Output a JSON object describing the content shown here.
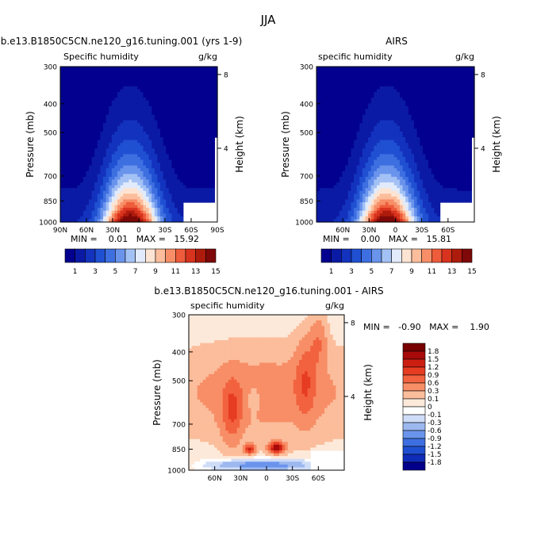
{
  "figure": {
    "title": "JJA"
  },
  "chart_data": [
    {
      "type": "heatmap",
      "panel": "model",
      "title": "b.e13.B1850C5CN.ne120_g16.tuning.001 (yrs 1-9)",
      "left_label": "Specific humidity",
      "units": "g/kg",
      "ylabel": "Pressure (mb)",
      "ylabel_right": "Height (km)",
      "x_ticks": [
        "90N",
        "60N",
        "30N",
        "0",
        "30S",
        "60S",
        "90S"
      ],
      "y_ticks": [
        "300",
        "400",
        "500",
        "700",
        "850",
        "1000"
      ],
      "height_ticks": [
        "8",
        "4"
      ],
      "ylim": [
        1000,
        300
      ],
      "stats_text": "MIN =    0.01   MAX =   15.92",
      "min": 0.01,
      "max": 15.92,
      "peak_lat": 10,
      "colorbar_labels": [
        "1",
        "3",
        "5",
        "7",
        "9",
        "11",
        "13",
        "15"
      ]
    },
    {
      "type": "heatmap",
      "panel": "obs",
      "title": "AIRS",
      "left_label": "specific humidity",
      "units": "g/kg",
      "ylabel": "Pressure (mb)",
      "ylabel_right": "Height (km)",
      "x_ticks": [
        "60N",
        "30N",
        "0",
        "30S",
        "60S"
      ],
      "y_ticks": [
        "300",
        "400",
        "500",
        "700",
        "850",
        "1000"
      ],
      "height_ticks": [
        "8",
        "4"
      ],
      "ylim": [
        1000,
        300
      ],
      "stats_text": "MIN =    0.00   MAX =   15.81",
      "min": 0.0,
      "max": 15.81,
      "peak_lat": 10,
      "colorbar_labels": [
        "1",
        "3",
        "5",
        "7",
        "9",
        "11",
        "13",
        "15"
      ]
    },
    {
      "type": "heatmap",
      "panel": "diff",
      "title": "b.e13.B1850C5CN.ne120_g16.tuning.001 - AIRS",
      "left_label": "specific humidity",
      "units": "g/kg",
      "ylabel": "Pressure (mb)",
      "ylabel_right": "Height (km)",
      "x_ticks": [
        "60N",
        "30N",
        "0",
        "30S",
        "60S"
      ],
      "y_ticks": [
        "300",
        "400",
        "500",
        "700",
        "850",
        "1000"
      ],
      "height_ticks": [
        "8",
        "4"
      ],
      "ylim": [
        1000,
        300
      ],
      "stats_text": "MIN =   -0.90   MAX =    1.90",
      "min": -0.9,
      "max": 1.9,
      "colorbar_labels": [
        "1.8",
        "1.5",
        "1.2",
        "0.9",
        "0.6",
        "0.3",
        "0.1",
        "0",
        "-0.1",
        "-0.3",
        "-0.6",
        "-0.9",
        "-1.2",
        "-1.5",
        "-1.8"
      ]
    }
  ],
  "colors": {
    "abs_scale": [
      "#03008f",
      "#0b1aa4",
      "#1333be",
      "#2050d2",
      "#3e6fe0",
      "#6a94ec",
      "#a4c1f5",
      "#e1ebfb",
      "#fde4d2",
      "#fbbd9b",
      "#f78e67",
      "#ee5c3b",
      "#d8331e",
      "#ad1b0d",
      "#7e0908"
    ],
    "diff_scale": [
      "#780000",
      "#a80a0a",
      "#cc1f12",
      "#e63c22",
      "#f2623f",
      "#f78e67",
      "#fbbd9b",
      "#fde9da",
      "#ffffff",
      "#cfdcf7",
      "#9cb8ef",
      "#6a94ec",
      "#3e6fe0",
      "#1f4fd1",
      "#0f2cb8",
      "#02008a"
    ]
  }
}
